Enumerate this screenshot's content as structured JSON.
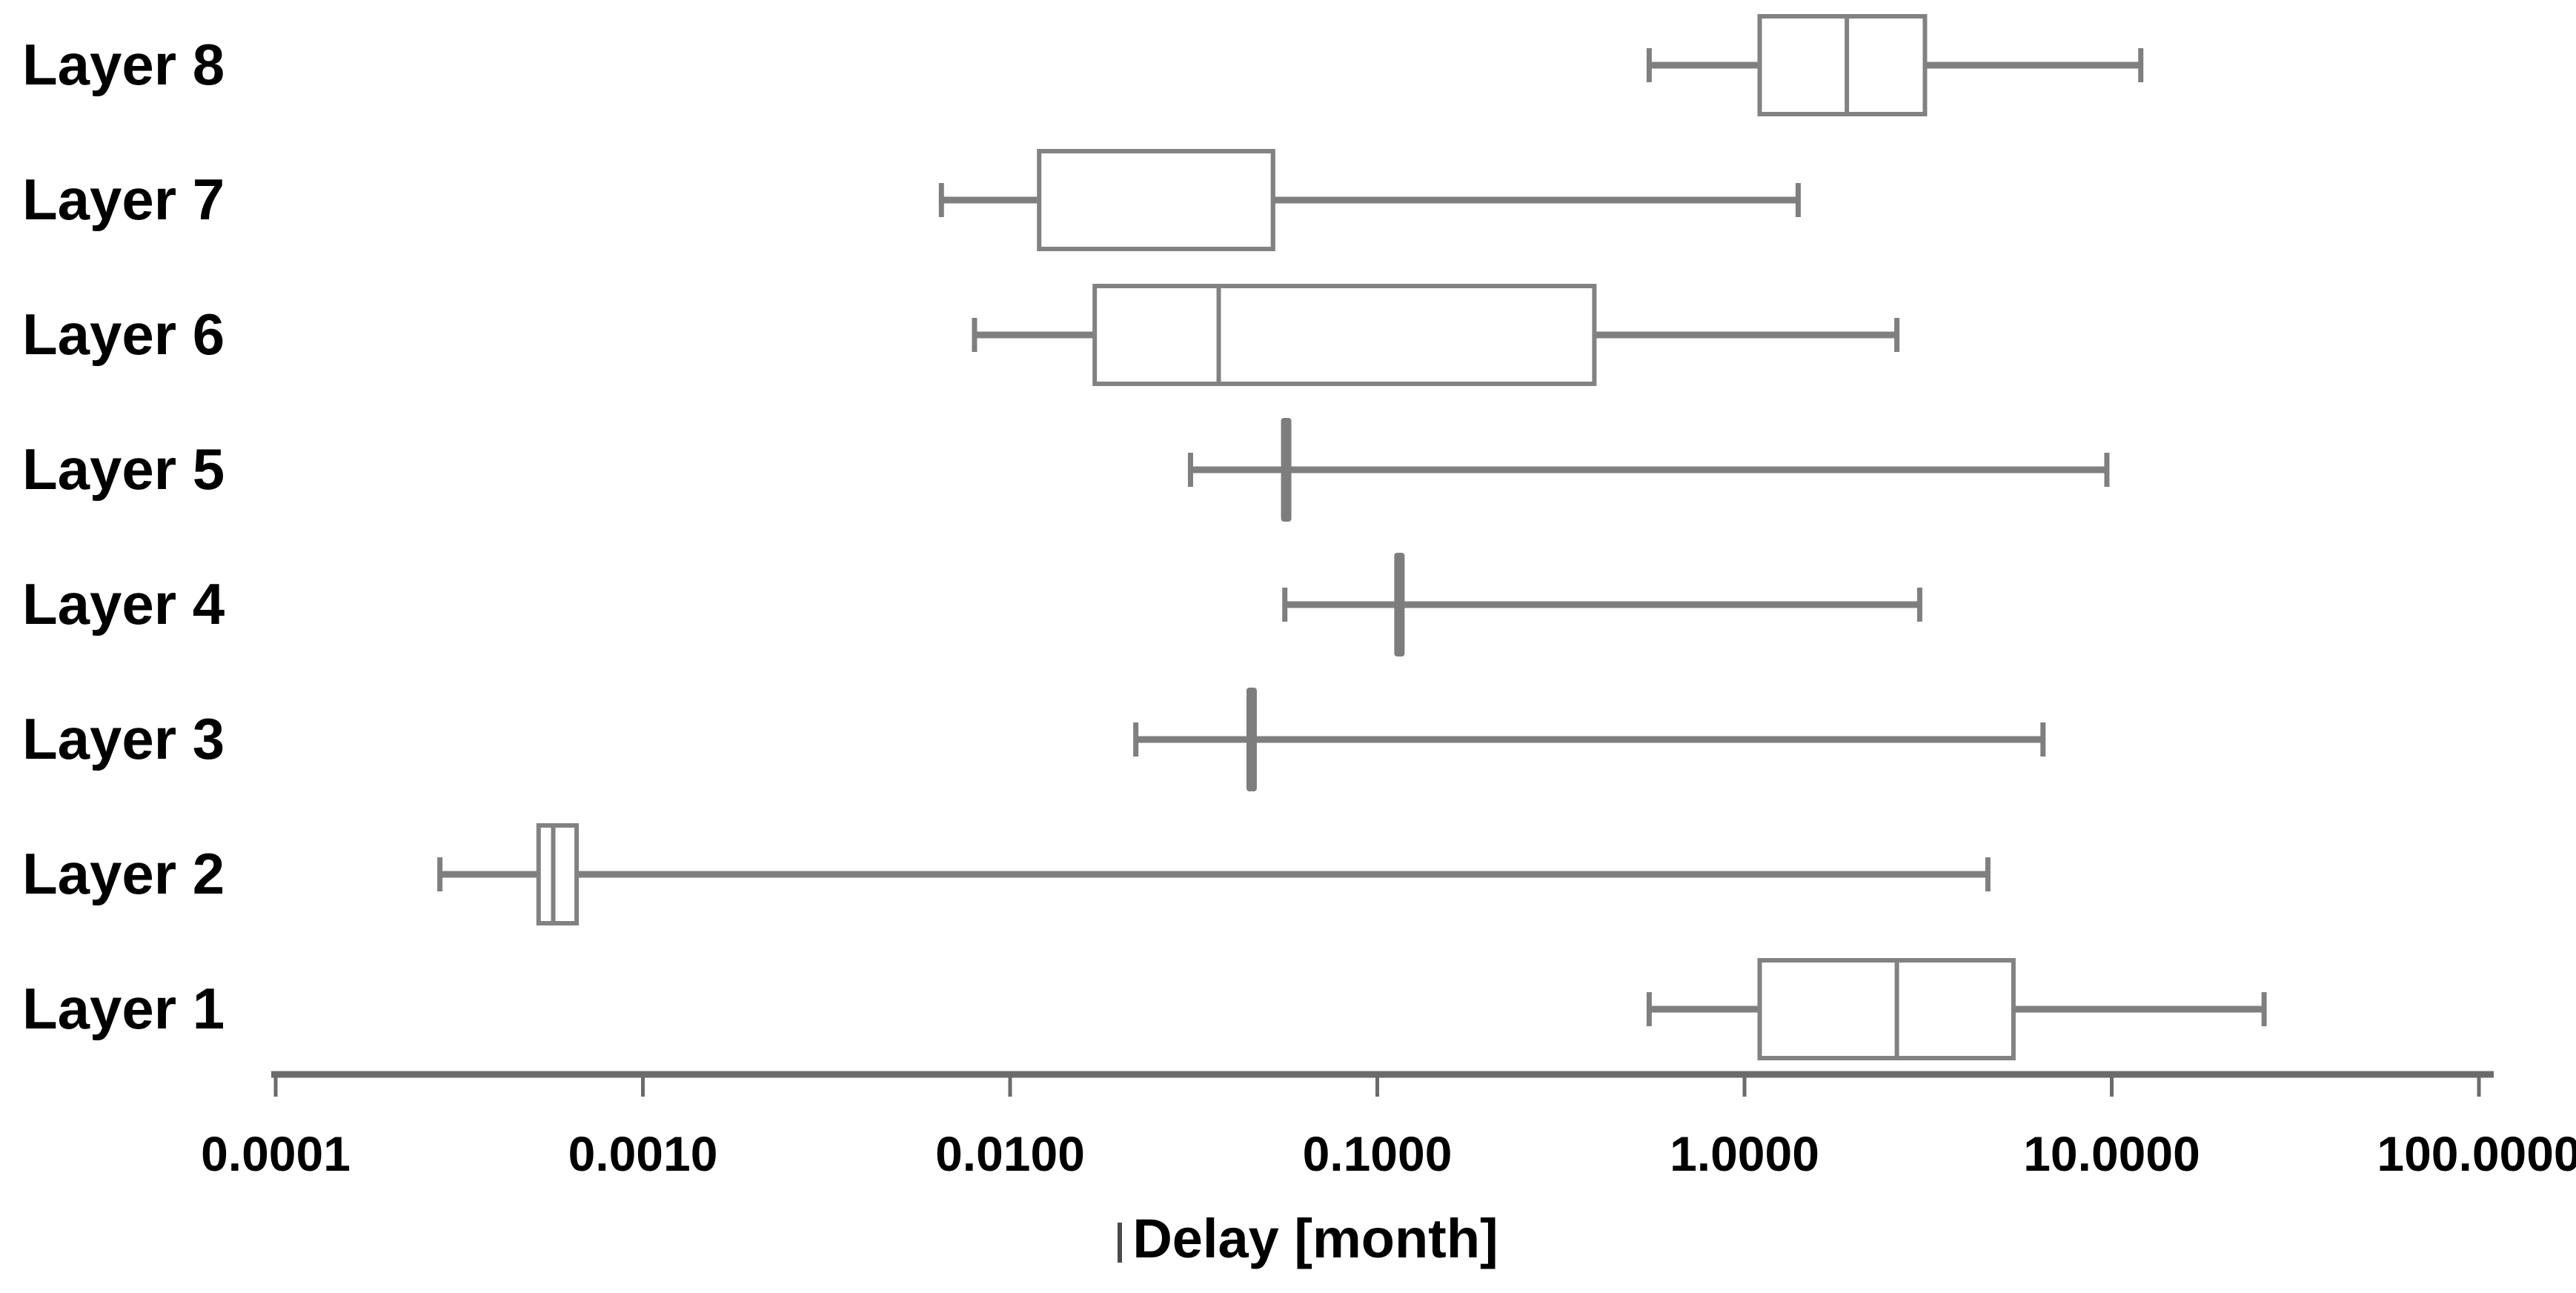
{
  "chart_data": {
    "type": "boxplot",
    "orientation": "horizontal",
    "title": "",
    "xlabel": "Delay [month]",
    "ylabel": "",
    "x_scale": "log10",
    "xlim": [
      0.0001,
      100
    ],
    "grid": false,
    "legend": "none",
    "x_ticks": [
      {
        "value": 0.0001,
        "label": "0.0001"
      },
      {
        "value": 0.001,
        "label": "0.0010"
      },
      {
        "value": 0.01,
        "label": "0.0100"
      },
      {
        "value": 0.1,
        "label": "0.1000"
      },
      {
        "value": 1,
        "label": "1.0000"
      },
      {
        "value": 10,
        "label": "10.0000"
      },
      {
        "value": 100,
        "label": "100.0000"
      }
    ],
    "categories": [
      "Layer 8",
      "Layer 7",
      "Layer 6",
      "Layer 5",
      "Layer 4",
      "Layer 3",
      "Layer 2",
      "Layer 1"
    ],
    "series": [
      {
        "name": "Layer 8",
        "whisker_low": 0.55,
        "q1": 1.1,
        "median": 1.9,
        "q3": 3.1,
        "whisker_high": 12
      },
      {
        "name": "Layer 7",
        "whisker_low": 0.0065,
        "q1": 0.012,
        "median": 0.052,
        "q3": 0.052,
        "whisker_high": 1.4
      },
      {
        "name": "Layer 6",
        "whisker_low": 0.008,
        "q1": 0.017,
        "median": 0.037,
        "q3": 0.39,
        "whisker_high": 2.6
      },
      {
        "name": "Layer 5",
        "whisker_low": 0.031,
        "q1": 0.055,
        "median": 0.056,
        "q3": 0.058,
        "whisker_high": 9.7
      },
      {
        "name": "Layer 4",
        "whisker_low": 0.056,
        "q1": 0.11,
        "median": 0.116,
        "q3": 0.12,
        "whisker_high": 3.0
      },
      {
        "name": "Layer 3",
        "whisker_low": 0.022,
        "q1": 0.044,
        "median": 0.045,
        "q3": 0.047,
        "whisker_high": 6.5
      },
      {
        "name": "Layer 2",
        "whisker_low": 0.00028,
        "q1": 0.00052,
        "median": 0.00057,
        "q3": 0.00066,
        "whisker_high": 4.6
      },
      {
        "name": "Layer 1",
        "whisker_low": 0.55,
        "q1": 1.1,
        "median": 2.6,
        "q3": 5.4,
        "whisker_high": 26
      }
    ]
  },
  "colors": {
    "background": "#ffffff",
    "box_stroke": "#828282",
    "box_fill": "#ffffff",
    "whisker": "#7f7f7f",
    "collapsed_box_fill": "#7d7d7d",
    "axis": "#6b6b6b",
    "text": "#000000"
  }
}
